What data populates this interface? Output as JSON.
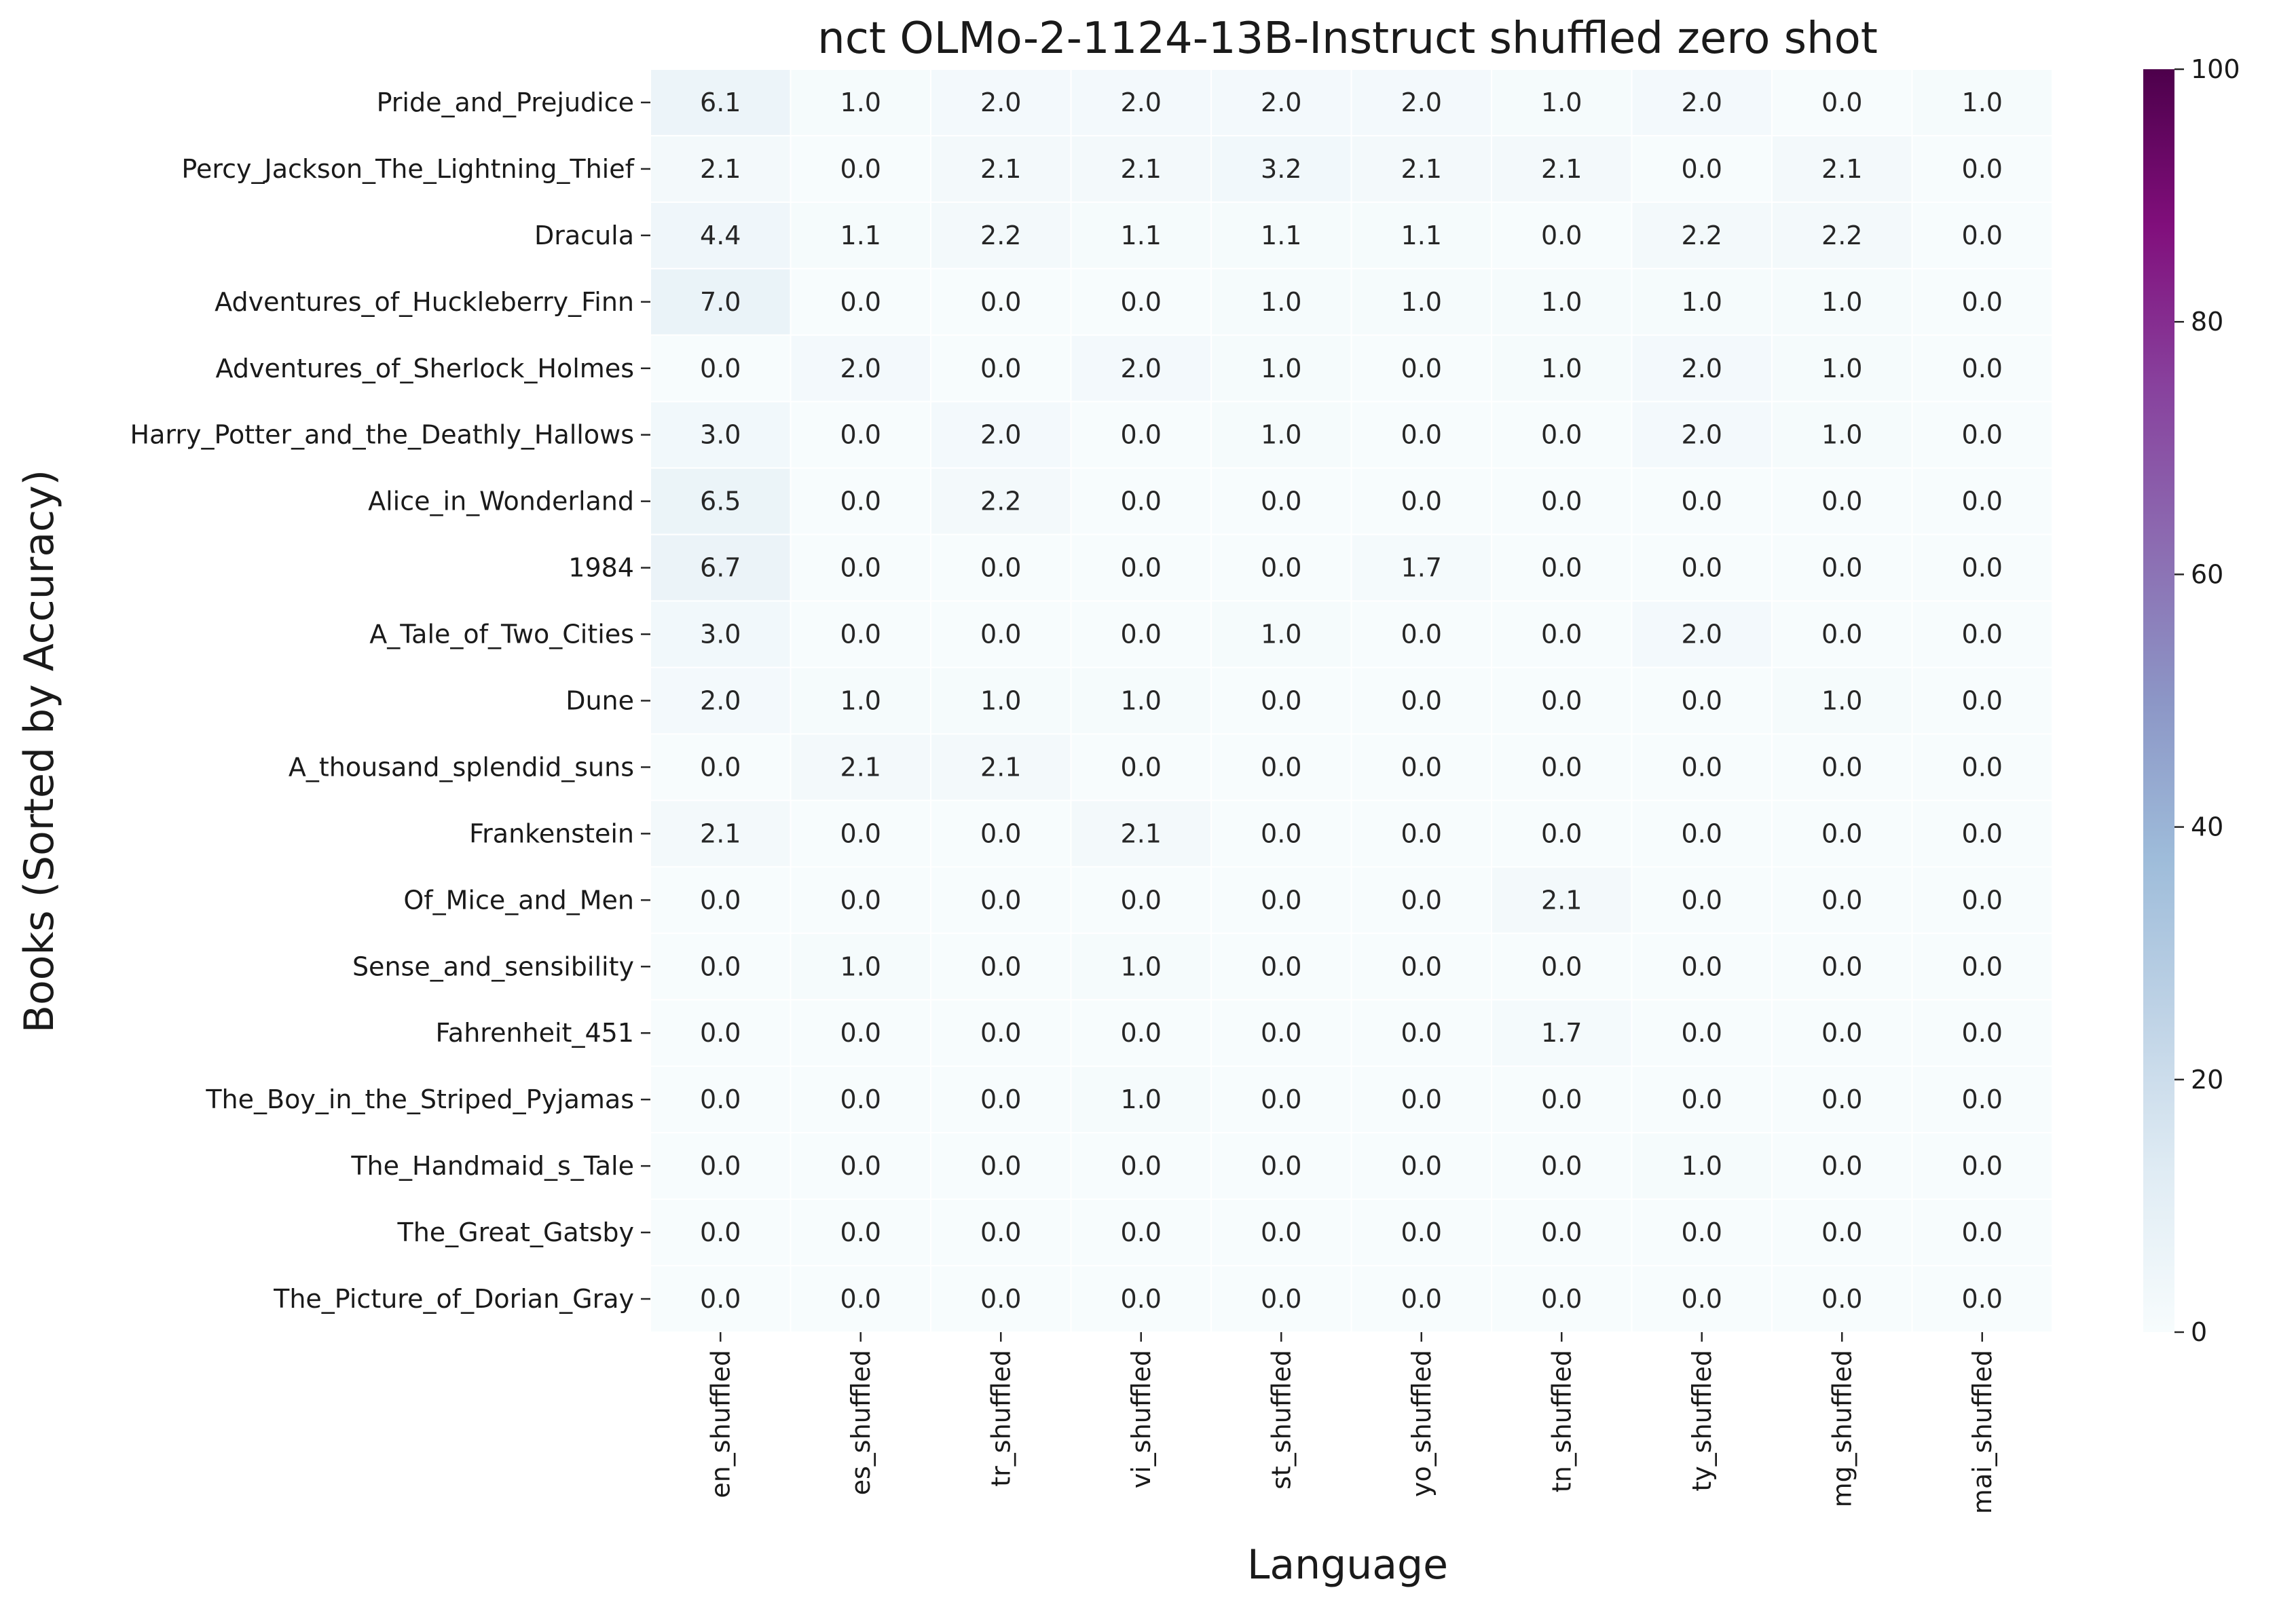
{
  "chart_data": {
    "type": "heatmap",
    "title": "nct OLMo-2-1124-13B-Instruct shuffled zero shot",
    "xlabel": "Language",
    "ylabel": "Books (Sorted by Accuracy)",
    "x": [
      "en_shuffled",
      "es_shuffled",
      "tr_shuffled",
      "vi_shuffled",
      "st_shuffled",
      "yo_shuffled",
      "tn_shuffled",
      "ty_shuffled",
      "mg_shuffled",
      "mai_shuffled"
    ],
    "y": [
      "Pride_and_Prejudice",
      "Percy_Jackson_The_Lightning_Thief",
      "Dracula",
      "Adventures_of_Huckleberry_Finn",
      "Adventures_of_Sherlock_Holmes",
      "Harry_Potter_and_the_Deathly_Hallows",
      "Alice_in_Wonderland",
      "1984",
      "A_Tale_of_Two_Cities",
      "Dune",
      "A_thousand_splendid_suns",
      "Frankenstein",
      "Of_Mice_and_Men",
      "Sense_and_sensibility",
      "Fahrenheit_451",
      "The_Boy_in_the_Striped_Pyjamas",
      "The_Handmaid_s_Tale",
      "The_Great_Gatsby",
      "The_Picture_of_Dorian_Gray"
    ],
    "values": [
      [
        6.1,
        1.0,
        2.0,
        2.0,
        2.0,
        2.0,
        1.0,
        2.0,
        0.0,
        1.0
      ],
      [
        2.1,
        0.0,
        2.1,
        2.1,
        3.2,
        2.1,
        2.1,
        0.0,
        2.1,
        0.0
      ],
      [
        4.4,
        1.1,
        2.2,
        1.1,
        1.1,
        1.1,
        0.0,
        2.2,
        2.2,
        0.0
      ],
      [
        7.0,
        0.0,
        0.0,
        0.0,
        1.0,
        1.0,
        1.0,
        1.0,
        1.0,
        0.0
      ],
      [
        0.0,
        2.0,
        0.0,
        2.0,
        1.0,
        0.0,
        1.0,
        2.0,
        1.0,
        0.0
      ],
      [
        3.0,
        0.0,
        2.0,
        0.0,
        1.0,
        0.0,
        0.0,
        2.0,
        1.0,
        0.0
      ],
      [
        6.5,
        0.0,
        2.2,
        0.0,
        0.0,
        0.0,
        0.0,
        0.0,
        0.0,
        0.0
      ],
      [
        6.7,
        0.0,
        0.0,
        0.0,
        0.0,
        1.7,
        0.0,
        0.0,
        0.0,
        0.0
      ],
      [
        3.0,
        0.0,
        0.0,
        0.0,
        1.0,
        0.0,
        0.0,
        2.0,
        0.0,
        0.0
      ],
      [
        2.0,
        1.0,
        1.0,
        1.0,
        0.0,
        0.0,
        0.0,
        0.0,
        1.0,
        0.0
      ],
      [
        0.0,
        2.1,
        2.1,
        0.0,
        0.0,
        0.0,
        0.0,
        0.0,
        0.0,
        0.0
      ],
      [
        2.1,
        0.0,
        0.0,
        2.1,
        0.0,
        0.0,
        0.0,
        0.0,
        0.0,
        0.0
      ],
      [
        0.0,
        0.0,
        0.0,
        0.0,
        0.0,
        0.0,
        2.1,
        0.0,
        0.0,
        0.0
      ],
      [
        0.0,
        1.0,
        0.0,
        1.0,
        0.0,
        0.0,
        0.0,
        0.0,
        0.0,
        0.0
      ],
      [
        0.0,
        0.0,
        0.0,
        0.0,
        0.0,
        0.0,
        1.7,
        0.0,
        0.0,
        0.0
      ],
      [
        0.0,
        0.0,
        0.0,
        1.0,
        0.0,
        0.0,
        0.0,
        0.0,
        0.0,
        0.0
      ],
      [
        0.0,
        0.0,
        0.0,
        0.0,
        0.0,
        0.0,
        0.0,
        1.0,
        0.0,
        0.0
      ],
      [
        0.0,
        0.0,
        0.0,
        0.0,
        0.0,
        0.0,
        0.0,
        0.0,
        0.0,
        0.0
      ],
      [
        0.0,
        0.0,
        0.0,
        0.0,
        0.0,
        0.0,
        0.0,
        0.0,
        0.0,
        0.0
      ]
    ],
    "colorbar": {
      "range": [
        0,
        100
      ],
      "ticks": [
        0,
        20,
        40,
        60,
        80,
        100
      ],
      "colormap": "BuPu",
      "colors": [
        "#f7fcfd",
        "#e0ecf4",
        "#bfd3e6",
        "#9ebcda",
        "#8c96c6",
        "#8c6bb1",
        "#88419d",
        "#810f7c",
        "#4d004b"
      ]
    },
    "value_format": "one decimal",
    "grid": false
  }
}
